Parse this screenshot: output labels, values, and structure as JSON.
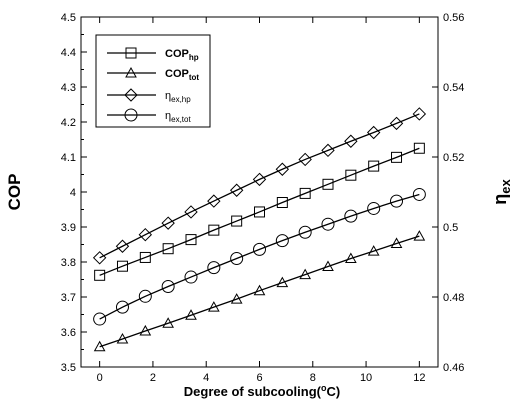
{
  "chart_data": {
    "type": "line",
    "xlabel": "Degree of subcooling(",
    "xlabel_sup": "o",
    "xlabel_tail": "C)",
    "ylabel_left": "COP",
    "ylabel_right": "η",
    "ylabel_right_sub": "ex",
    "xlim": [
      -0.7,
      12.7
    ],
    "ylim_left": [
      3.5,
      4.5
    ],
    "ylim_right": [
      0.46,
      0.56
    ],
    "x_ticks": [
      0,
      2,
      4,
      6,
      8,
      10,
      12
    ],
    "x_tick_labels": [
      "0",
      "2",
      "4",
      "6",
      "8",
      "10",
      "12"
    ],
    "y_left_ticks": [
      3.5,
      3.6,
      3.7,
      3.8,
      3.9,
      4.0,
      4.1,
      4.2,
      4.3,
      4.4,
      4.5
    ],
    "y_left_tick_labels": [
      "3.5",
      "3.6",
      "3.7",
      "3.8",
      "3.9",
      "4",
      "4.1",
      "4.2",
      "4.3",
      "4.4",
      "4.5"
    ],
    "y_right_ticks": [
      0.46,
      0.48,
      0.5,
      0.52,
      0.54,
      0.56
    ],
    "y_right_tick_labels": [
      "0.46",
      "0.48",
      "0.5",
      "0.52",
      "0.54",
      "0.56"
    ],
    "grid": false,
    "legend_position": "top-left",
    "x": [
      0,
      0.857,
      1.714,
      2.571,
      3.429,
      4.286,
      5.143,
      6.0,
      6.857,
      7.714,
      8.571,
      9.429,
      10.286,
      11.143,
      12.0
    ],
    "series": [
      {
        "name": "COP",
        "name_sub": "hp",
        "marker": "square",
        "axis": "left",
        "values": [
          3.762,
          3.788,
          3.813,
          3.838,
          3.864,
          3.891,
          3.917,
          3.943,
          3.97,
          3.996,
          4.022,
          4.048,
          4.074,
          4.099,
          4.125
        ]
      },
      {
        "name": "COP",
        "name_sub": "tot",
        "marker": "triangle",
        "axis": "left",
        "values": [
          3.558,
          3.58,
          3.603,
          3.625,
          3.648,
          3.671,
          3.694,
          3.718,
          3.741,
          3.764,
          3.787,
          3.81,
          3.831,
          3.853,
          3.874
        ]
      },
      {
        "name": "η",
        "name_sub": "ex,hp",
        "marker": "diamond",
        "axis": "right",
        "values": [
          0.4912,
          0.4945,
          0.4978,
          0.5011,
          0.5043,
          0.5074,
          0.5105,
          0.5136,
          0.5165,
          0.5193,
          0.5219,
          0.5245,
          0.527,
          0.5296,
          0.5323
        ]
      },
      {
        "name": "η",
        "name_sub": "ex,tot",
        "marker": "circle",
        "axis": "right",
        "values": [
          0.4737,
          0.4771,
          0.4802,
          0.483,
          0.4857,
          0.4884,
          0.491,
          0.4936,
          0.4961,
          0.4985,
          0.5008,
          0.5031,
          0.5053,
          0.5074,
          0.5093
        ]
      }
    ]
  }
}
